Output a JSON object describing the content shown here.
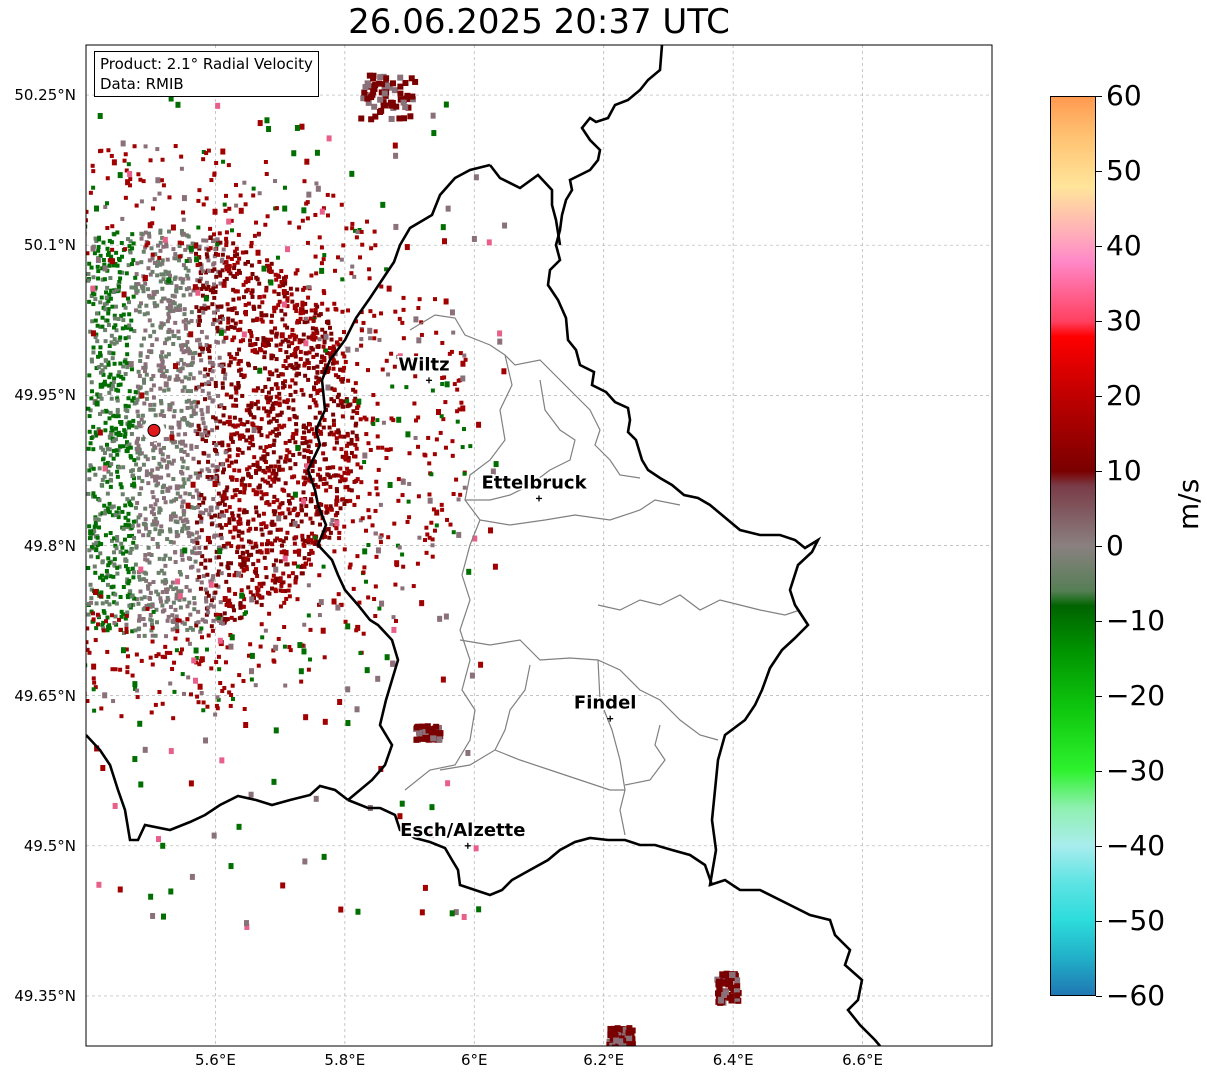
{
  "title": "26.06.2025 20:37 UTC",
  "info": {
    "product": "Product: 2.1° Radial Velocity",
    "data_source": "Data: RMIB"
  },
  "lat_ticks": [
    {
      "value": 50.25,
      "label": "50.25°N"
    },
    {
      "value": 50.1,
      "label": "50.1°N"
    },
    {
      "value": 49.95,
      "label": "49.95°N"
    },
    {
      "value": 49.8,
      "label": "49.8°N"
    },
    {
      "value": 49.65,
      "label": "49.65°N"
    },
    {
      "value": 49.5,
      "label": "49.5°N"
    },
    {
      "value": 49.35,
      "label": "49.35°N"
    }
  ],
  "lon_ticks": [
    {
      "value": 5.6,
      "label": "5.6°E"
    },
    {
      "value": 5.8,
      "label": "5.8°E"
    },
    {
      "value": 6.0,
      "label": "6°E"
    },
    {
      "value": 6.2,
      "label": "6.2°E"
    },
    {
      "value": 6.4,
      "label": "6.4°E"
    },
    {
      "value": 6.6,
      "label": "6.6°E"
    }
  ],
  "cities": [
    {
      "name": "Wiltz",
      "lon": 5.93,
      "lat": 49.965
    },
    {
      "name": "Ettelbruck",
      "lon": 6.1,
      "lat": 49.847
    },
    {
      "name": "Findel",
      "lon": 6.21,
      "lat": 49.627
    },
    {
      "name": "Esch/Alzette",
      "lon": 5.99,
      "lat": 49.5
    }
  ],
  "radar_site": {
    "lon": 5.505,
    "lat": 49.915,
    "color": "#e31a1c"
  },
  "colorbar": {
    "unit": "m/s",
    "min": -60,
    "max": 60,
    "ticks": [
      {
        "value": 60,
        "label": "60"
      },
      {
        "value": 50,
        "label": "50"
      },
      {
        "value": 40,
        "label": "40"
      },
      {
        "value": 30,
        "label": "30"
      },
      {
        "value": 20,
        "label": "20"
      },
      {
        "value": 10,
        "label": "10"
      },
      {
        "value": 0,
        "label": "0"
      },
      {
        "value": -10,
        "label": "−10"
      },
      {
        "value": -20,
        "label": "−20"
      },
      {
        "value": -30,
        "label": "−30"
      },
      {
        "value": -40,
        "label": "−40"
      },
      {
        "value": -50,
        "label": "−50"
      },
      {
        "value": -60,
        "label": "−60"
      }
    ],
    "stops": [
      {
        "value": -60,
        "color": "#1f78b4"
      },
      {
        "value": -55,
        "color": "#21b0c8"
      },
      {
        "value": -50,
        "color": "#2ddcdc"
      },
      {
        "value": -45,
        "color": "#5ee3e3"
      },
      {
        "value": -40,
        "color": "#a9eded"
      },
      {
        "value": -35,
        "color": "#8ff0b0"
      },
      {
        "value": -30,
        "color": "#2ef22e"
      },
      {
        "value": -22,
        "color": "#0fc80f"
      },
      {
        "value": -14,
        "color": "#009400"
      },
      {
        "value": -8,
        "color": "#006400"
      },
      {
        "value": -6,
        "color": "#557f55"
      },
      {
        "value": 0,
        "color": "#8a8080"
      },
      {
        "value": 8,
        "color": "#7a3c48"
      },
      {
        "value": 10,
        "color": "#7a0000"
      },
      {
        "value": 20,
        "color": "#c00000"
      },
      {
        "value": 28,
        "color": "#ff0000"
      },
      {
        "value": 30,
        "color": "#ff4060"
      },
      {
        "value": 38,
        "color": "#ff88c8"
      },
      {
        "value": 42,
        "color": "#ffb0b8"
      },
      {
        "value": 48,
        "color": "#ffe59a"
      },
      {
        "value": 55,
        "color": "#ffc070"
      },
      {
        "value": 60,
        "color": "#ff9a50"
      }
    ]
  },
  "map_extent": {
    "lon_min": 5.4,
    "lon_max": 6.8,
    "lat_min": 49.3,
    "lat_max": 50.3
  },
  "colors": {
    "gridline": "#b0b0b0",
    "country_border": "#000000",
    "canton_border": "#808080",
    "outbound_dark": "#7a0000",
    "outbound_mid": "#a00000",
    "inbound_green": "#006e00",
    "inbound_gray": "#6b7f6b",
    "near_zero": "#8a7078"
  }
}
